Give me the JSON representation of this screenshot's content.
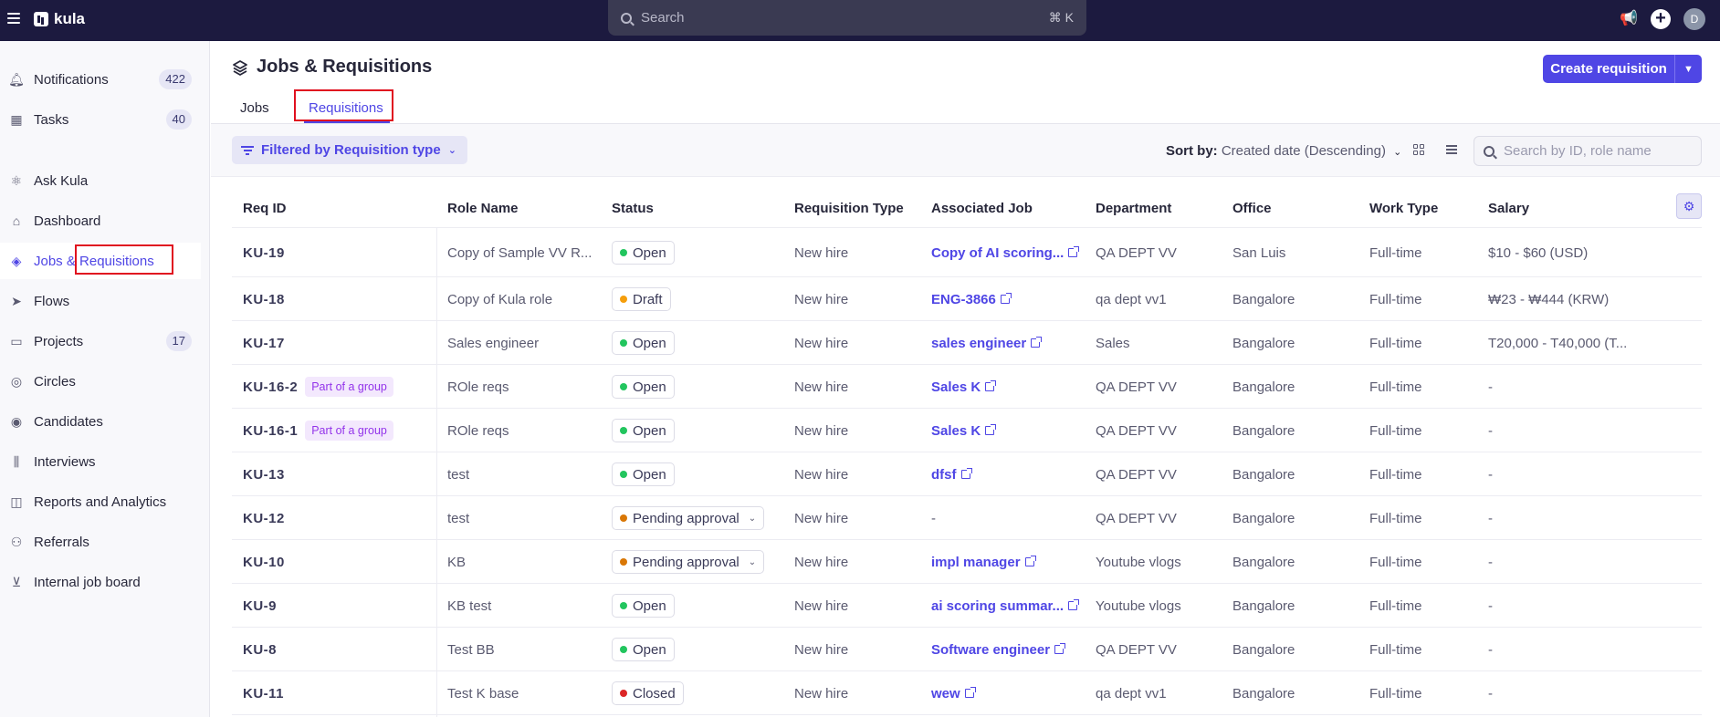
{
  "topbar": {
    "app_name": "kula",
    "search_placeholder": "Search",
    "search_shortcut": "⌘ K",
    "avatar_initial": "D"
  },
  "sidebar": {
    "items": [
      {
        "label": "Notifications",
        "badge": "422",
        "icon": "bell-icon"
      },
      {
        "label": "Tasks",
        "badge": "40",
        "icon": "calendar-icon"
      },
      {
        "label": "Ask Kula",
        "badge": "",
        "icon": "atom-icon"
      },
      {
        "label": "Dashboard",
        "badge": "",
        "icon": "home-icon"
      },
      {
        "label": "Jobs & Requisitions",
        "badge": "",
        "icon": "layers-icon"
      },
      {
        "label": "Flows",
        "badge": "",
        "icon": "send-icon"
      },
      {
        "label": "Projects",
        "badge": "17",
        "icon": "folder-icon"
      },
      {
        "label": "Circles",
        "badge": "",
        "icon": "circles-icon"
      },
      {
        "label": "Candidates",
        "badge": "",
        "icon": "user-circle-icon"
      },
      {
        "label": "Interviews",
        "badge": "",
        "icon": "audio-wave-icon"
      },
      {
        "label": "Reports and Analytics",
        "badge": "",
        "icon": "chart-icon"
      },
      {
        "label": "Referrals",
        "badge": "",
        "icon": "user-plus-icon"
      },
      {
        "label": "Internal job board",
        "badge": "",
        "icon": "board-icon"
      }
    ]
  },
  "header": {
    "title": "Jobs & Requisitions",
    "create_label": "Create requisition",
    "tabs": [
      {
        "label": "Jobs"
      },
      {
        "label": "Requisitions"
      }
    ]
  },
  "toolbar": {
    "filter_label": "Filtered by Requisition type",
    "sort_label": "Sort by:",
    "sort_value": "Created date (Descending)",
    "search_placeholder": "Search by ID, role name"
  },
  "table": {
    "columns": [
      "Req ID",
      "Role Name",
      "Status",
      "Requisition Type",
      "Associated Job",
      "Department",
      "Office",
      "Work Type",
      "Salary"
    ],
    "rows": [
      {
        "id": "KU-19",
        "group": "",
        "role": "Copy of Sample VV R...",
        "status": "Open",
        "status_color": "#22c55e",
        "dropdown": false,
        "type": "New hire",
        "job": "Copy of AI scoring...",
        "job_link": true,
        "dept": "QA DEPT VV",
        "office": "San Luis",
        "work": "Full-time",
        "salary": "$10 - $60 (USD)"
      },
      {
        "id": "KU-18",
        "group": "",
        "role": "Copy of Kula role",
        "status": "Draft",
        "status_color": "#f59e0b",
        "dropdown": false,
        "type": "New hire",
        "job": "ENG-3866",
        "job_link": true,
        "dept": "qa dept vv1",
        "office": "Bangalore",
        "work": "Full-time",
        "salary": "₩23 - ₩444 (KRW)"
      },
      {
        "id": "KU-17",
        "group": "",
        "role": "Sales engineer",
        "status": "Open",
        "status_color": "#22c55e",
        "dropdown": false,
        "type": "New hire",
        "job": "sales engineer",
        "job_link": true,
        "dept": "Sales",
        "office": "Bangalore",
        "work": "Full-time",
        "salary": "T20,000 - T40,000 (T..."
      },
      {
        "id": "KU-16-2",
        "group": "Part of a group",
        "role": "ROle reqs",
        "status": "Open",
        "status_color": "#22c55e",
        "dropdown": false,
        "type": "New hire",
        "job": "Sales K",
        "job_link": true,
        "dept": "QA DEPT VV",
        "office": "Bangalore",
        "work": "Full-time",
        "salary": "-"
      },
      {
        "id": "KU-16-1",
        "group": "Part of a group",
        "role": "ROle reqs",
        "status": "Open",
        "status_color": "#22c55e",
        "dropdown": false,
        "type": "New hire",
        "job": "Sales K",
        "job_link": true,
        "dept": "QA DEPT VV",
        "office": "Bangalore",
        "work": "Full-time",
        "salary": "-"
      },
      {
        "id": "KU-13",
        "group": "",
        "role": "test",
        "status": "Open",
        "status_color": "#22c55e",
        "dropdown": false,
        "type": "New hire",
        "job": "dfsf",
        "job_link": true,
        "dept": "QA DEPT VV",
        "office": "Bangalore",
        "work": "Full-time",
        "salary": "-"
      },
      {
        "id": "KU-12",
        "group": "",
        "role": "test",
        "status": "Pending approval",
        "status_color": "#d97706",
        "dropdown": true,
        "type": "New hire",
        "job": "-",
        "job_link": false,
        "dept": "QA DEPT VV",
        "office": "Bangalore",
        "work": "Full-time",
        "salary": "-"
      },
      {
        "id": "KU-10",
        "group": "",
        "role": "KB",
        "status": "Pending approval",
        "status_color": "#d97706",
        "dropdown": true,
        "type": "New hire",
        "job": "impl manager",
        "job_link": true,
        "dept": "Youtube vlogs",
        "office": "Bangalore",
        "work": "Full-time",
        "salary": "-"
      },
      {
        "id": "KU-9",
        "group": "",
        "role": "KB test",
        "status": "Open",
        "status_color": "#22c55e",
        "dropdown": false,
        "type": "New hire",
        "job": "ai scoring summar...",
        "job_link": true,
        "dept": "Youtube vlogs",
        "office": "Bangalore",
        "work": "Full-time",
        "salary": "-"
      },
      {
        "id": "KU-8",
        "group": "",
        "role": "Test BB",
        "status": "Open",
        "status_color": "#22c55e",
        "dropdown": false,
        "type": "New hire",
        "job": "Software engineer",
        "job_link": true,
        "dept": "QA DEPT VV",
        "office": "Bangalore",
        "work": "Full-time",
        "salary": "-"
      },
      {
        "id": "KU-11",
        "group": "",
        "role": "Test K base",
        "status": "Closed",
        "status_color": "#dc2626",
        "dropdown": false,
        "type": "New hire",
        "job": "wew",
        "job_link": true,
        "dept": "qa dept vv1",
        "office": "Bangalore",
        "work": "Full-time",
        "salary": "-"
      }
    ]
  },
  "colors": {
    "accent": "#4f46e5",
    "topbar": "#1c1a3f",
    "highlight": "#e0101f"
  }
}
